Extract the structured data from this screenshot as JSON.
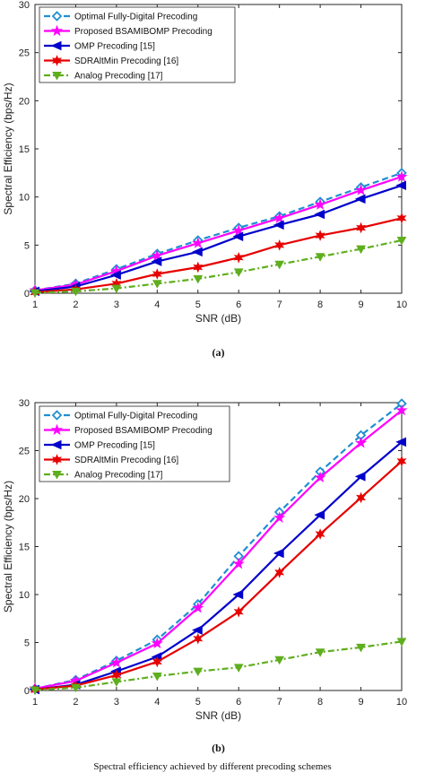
{
  "chart_data": [
    {
      "type": "line",
      "caption": "(a)",
      "xlabel": "SNR (dB)",
      "ylabel": "Spectral Efficiency (bps/Hz)",
      "xlim": [
        1,
        10
      ],
      "ylim": [
        0,
        30
      ],
      "x": [
        1,
        2,
        3,
        4,
        5,
        6,
        7,
        8,
        9,
        10
      ],
      "xticks": [
        "1",
        "2",
        "3",
        "4",
        "5",
        "6",
        "7",
        "8",
        "9",
        "10"
      ],
      "yticks": [
        "0",
        "5",
        "10",
        "15",
        "20",
        "25",
        "30"
      ],
      "legend_position": "top-left",
      "grid": false,
      "series": [
        {
          "name": "Optimal Fully-Digital Precoding",
          "color": "#1f8fd1",
          "dash": "dashed",
          "marker": "diamond",
          "values": [
            0.3,
            1.0,
            2.5,
            4.1,
            5.5,
            6.8,
            8.0,
            9.5,
            11.0,
            12.5
          ]
        },
        {
          "name": "Proposed BSAMIBOMP Precoding",
          "color": "#ff00ff",
          "dash": "solid",
          "marker": "star",
          "values": [
            0.3,
            0.9,
            2.3,
            3.9,
            5.2,
            6.5,
            7.8,
            9.2,
            10.7,
            12.1
          ]
        },
        {
          "name": "OMP Precoding [15]",
          "color": "#0000cc",
          "dash": "solid",
          "marker": "triangle-left",
          "values": [
            0.2,
            0.7,
            1.9,
            3.3,
            4.3,
            5.9,
            7.1,
            8.2,
            9.8,
            11.2
          ]
        },
        {
          "name": "SDRAltMin Precoding [16]",
          "color": "#e60000",
          "dash": "solid",
          "marker": "star6",
          "values": [
            0.1,
            0.4,
            1.0,
            2.0,
            2.7,
            3.7,
            5.0,
            6.0,
            6.8,
            7.8
          ]
        },
        {
          "name": "Analog Precoding [17]",
          "color": "#5fae1e",
          "dash": "dashdot",
          "marker": "triangle-down",
          "values": [
            0.05,
            0.2,
            0.5,
            1.0,
            1.5,
            2.2,
            3.0,
            3.8,
            4.6,
            5.5
          ]
        }
      ]
    },
    {
      "type": "line",
      "caption": "(b)",
      "xlabel": "SNR (dB)",
      "ylabel": "Spectral Efficiency (bps/Hz)",
      "xlim": [
        1,
        10
      ],
      "ylim": [
        0,
        30
      ],
      "x": [
        1,
        2,
        3,
        4,
        5,
        6,
        7,
        8,
        9,
        10
      ],
      "xticks": [
        "1",
        "2",
        "3",
        "4",
        "5",
        "6",
        "7",
        "8",
        "9",
        "10"
      ],
      "yticks": [
        "0",
        "5",
        "10",
        "15",
        "20",
        "25",
        "30"
      ],
      "legend_position": "top-left",
      "grid": false,
      "series": [
        {
          "name": "Optimal  Fully-Digital Precoding",
          "color": "#1f8fd1",
          "dash": "dashed",
          "marker": "diamond",
          "values": [
            0.2,
            1.1,
            3.1,
            5.3,
            9.0,
            14.0,
            18.6,
            22.8,
            26.6,
            29.9
          ]
        },
        {
          "name": "Proposed BSAMIBOMP Precoding",
          "color": "#ff00ff",
          "dash": "solid",
          "marker": "star",
          "values": [
            0.2,
            1.0,
            2.9,
            4.9,
            8.6,
            13.2,
            18.0,
            22.2,
            25.8,
            29.2
          ]
        },
        {
          "name": "OMP Precoding [15]",
          "color": "#0000cc",
          "dash": "solid",
          "marker": "triangle-left",
          "values": [
            0.1,
            0.6,
            2.0,
            3.5,
            6.3,
            10.0,
            14.3,
            18.3,
            22.3,
            25.9
          ]
        },
        {
          "name": "SDRAltMin Precoding [16]",
          "color": "#e60000",
          "dash": "solid",
          "marker": "star6",
          "values": [
            0.1,
            0.5,
            1.6,
            3.0,
            5.4,
            8.2,
            12.3,
            16.3,
            20.1,
            23.9
          ]
        },
        {
          "name": "Analog Precoding [17]",
          "color": "#5fae1e",
          "dash": "dashdot",
          "marker": "triangle-down",
          "values": [
            0.05,
            0.3,
            0.9,
            1.5,
            2.0,
            2.4,
            3.2,
            4.0,
            4.5,
            5.1
          ]
        }
      ]
    }
  ],
  "footer_text": "Spectral efficiency achieved by different precoding schemes"
}
